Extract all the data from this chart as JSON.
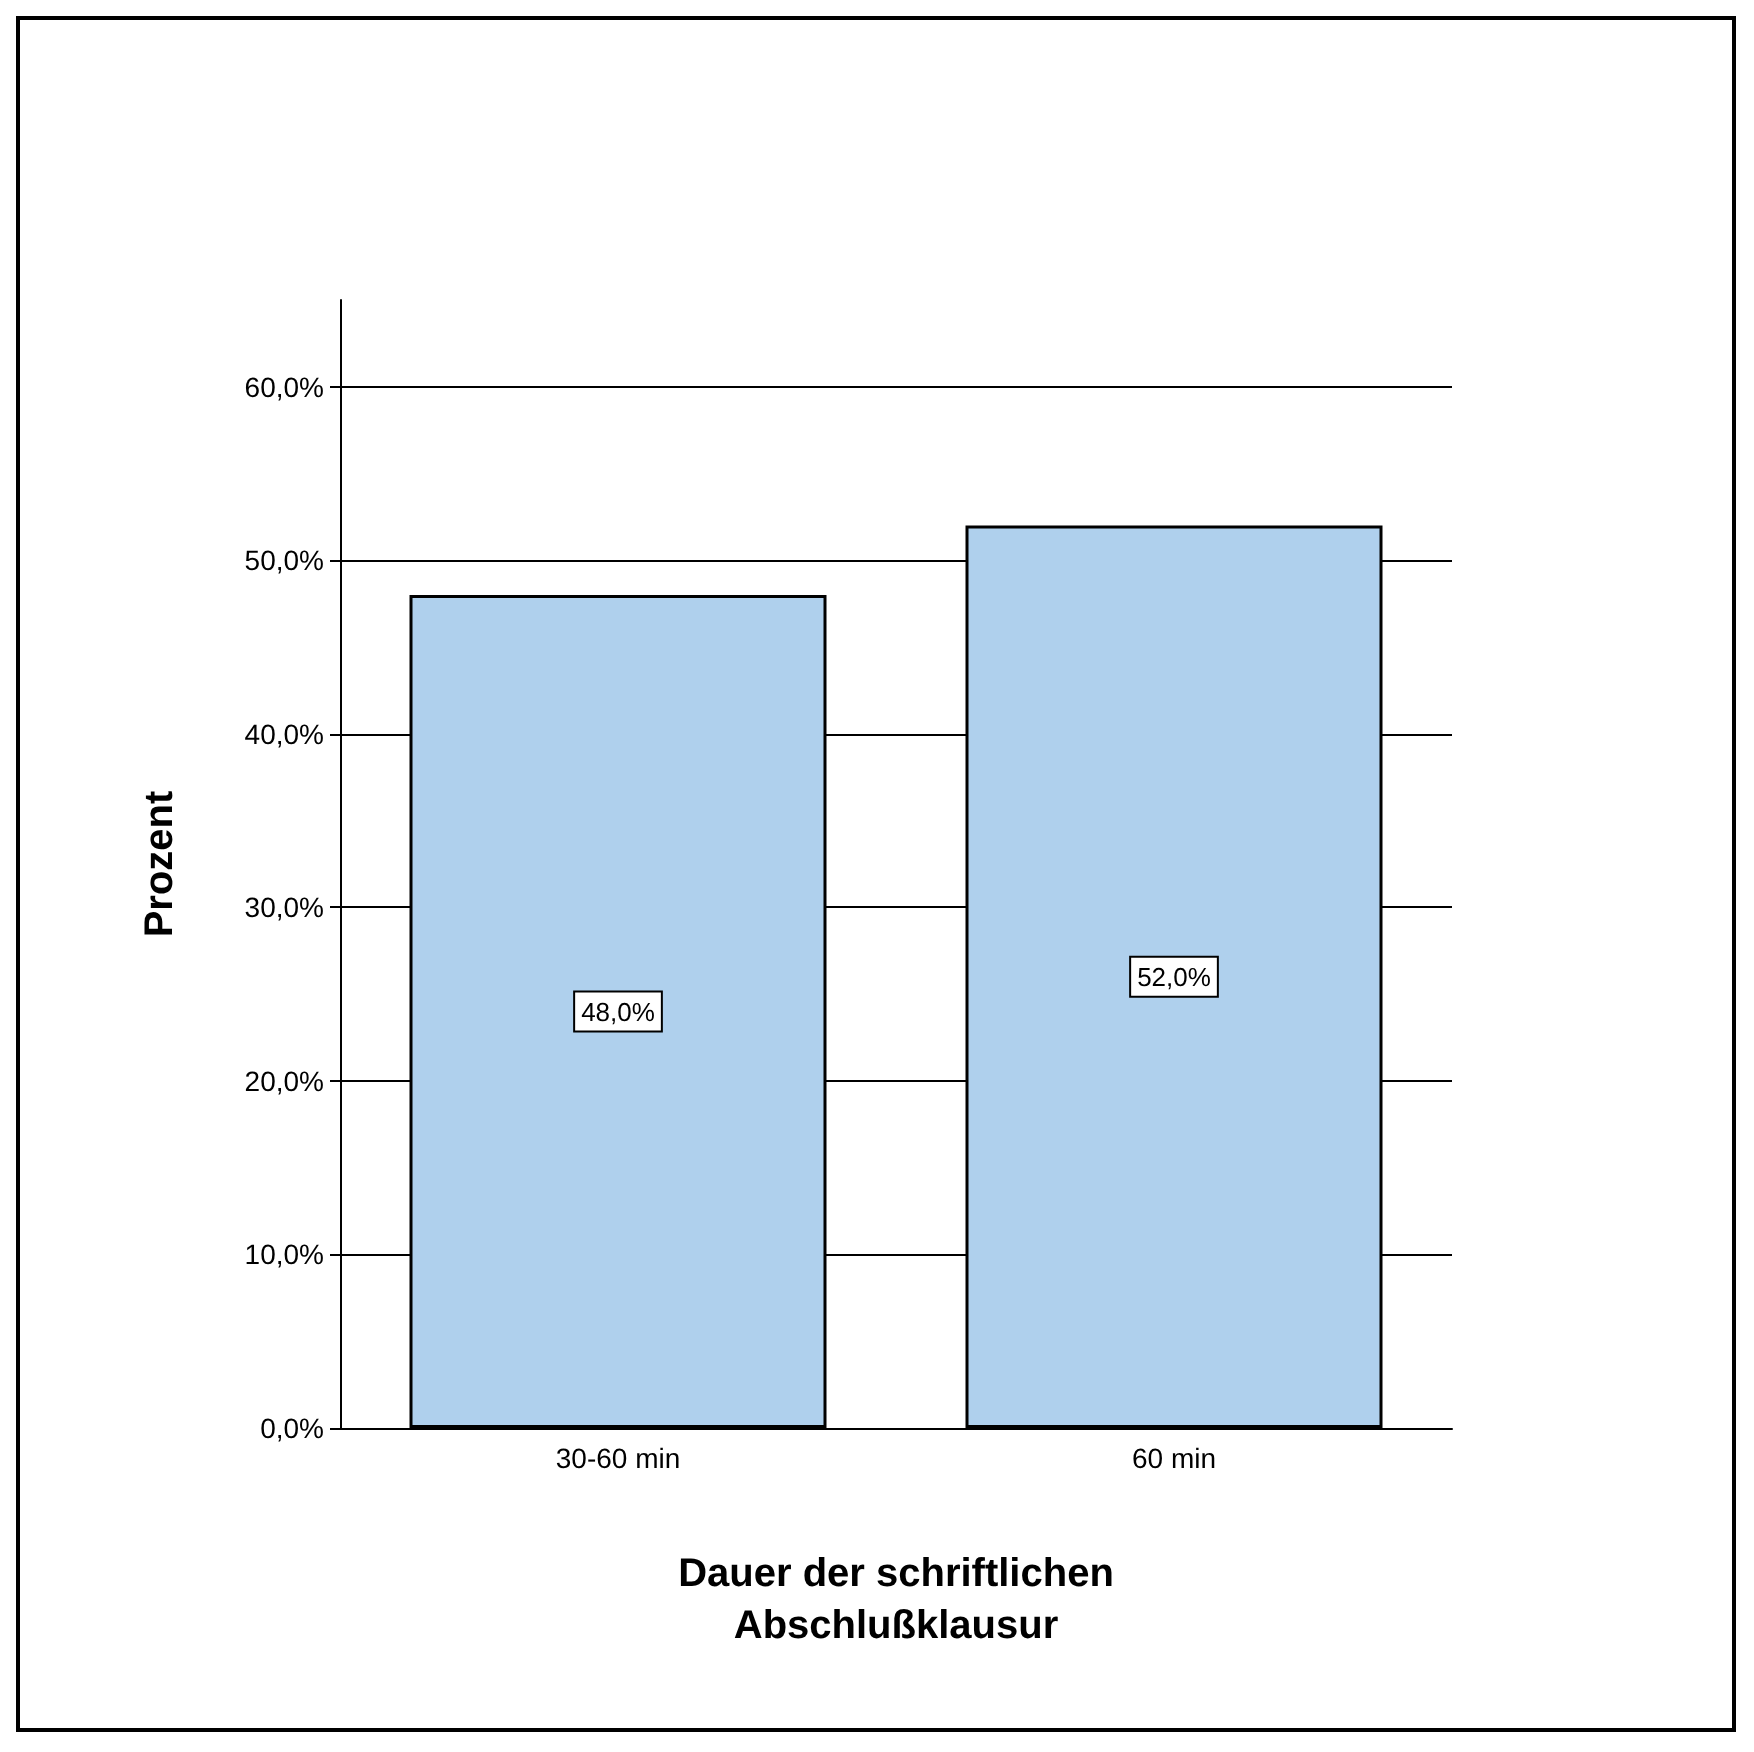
{
  "chart_data": {
    "type": "bar",
    "categories": [
      "30-60 min",
      "60 min"
    ],
    "values": [
      48,
      52
    ],
    "color": "#afd0ed",
    "value_labels": [
      "48,0%",
      "52,0%"
    ],
    "xlabel": "Dauer der schriftlichen Abschlußklausur",
    "ylabel": "Prozent",
    "ylim": [
      0,
      65
    ],
    "yticks": [
      {
        "value": 0,
        "label": "0,0%"
      },
      {
        "value": 10,
        "label": "10,0%"
      },
      {
        "value": 20,
        "label": "20,0%"
      },
      {
        "value": 30,
        "label": "30,0%"
      },
      {
        "value": 40,
        "label": "40,0%"
      },
      {
        "value": 50,
        "label": "50,0%"
      },
      {
        "value": 60,
        "label": "60,0%"
      }
    ],
    "grid": "y"
  }
}
